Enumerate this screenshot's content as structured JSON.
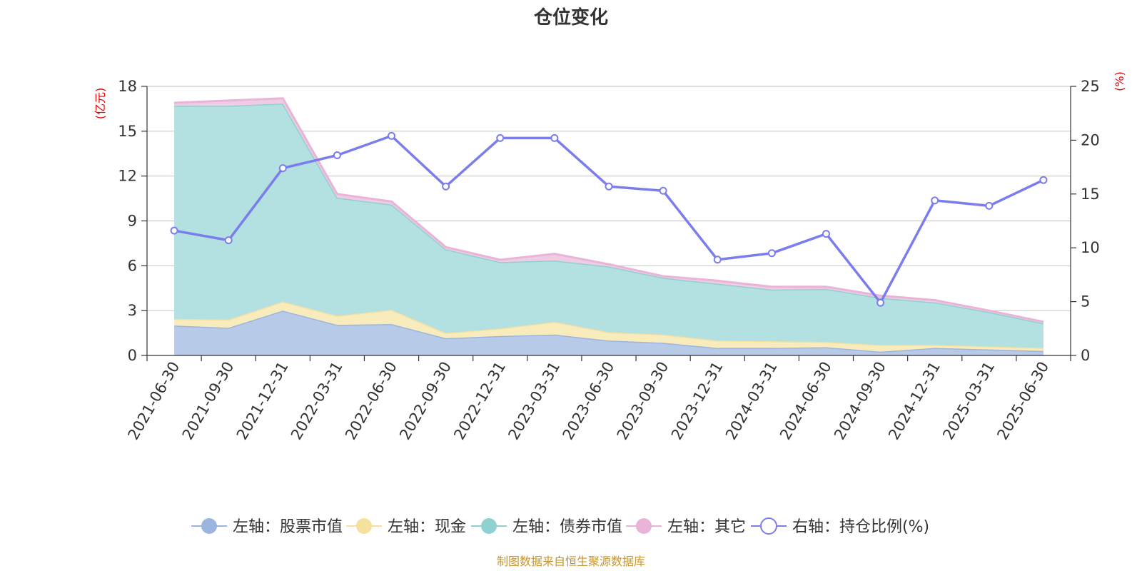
{
  "chart_data": {
    "type": "area",
    "title": "仓位变化",
    "left_unit": "(亿元)",
    "right_unit": "(%)",
    "source": "制图数据来自恒生聚源数据库",
    "categories": [
      "2021-06-30",
      "2021-09-30",
      "2021-12-31",
      "2022-03-31",
      "2022-06-30",
      "2022-09-30",
      "2022-12-31",
      "2023-03-31",
      "2023-06-30",
      "2023-09-30",
      "2023-12-31",
      "2024-03-31",
      "2024-06-30",
      "2024-09-30",
      "2024-12-31",
      "2025-03-31",
      "2025-06-30"
    ],
    "left_axis": {
      "min": 0,
      "max": 18,
      "ticks": [
        "0",
        "3",
        "6",
        "9",
        "12",
        "15",
        "18"
      ]
    },
    "right_axis": {
      "min": 0,
      "max": 25,
      "ticks": [
        "0",
        "5",
        "10",
        "15",
        "20",
        "25"
      ]
    },
    "stacked_series": [
      {
        "name": "左轴：股票市值",
        "color": "#9bb5e0",
        "fill": "#b7cbe9",
        "values": [
          2.0,
          1.85,
          3.0,
          2.05,
          2.1,
          1.15,
          1.3,
          1.4,
          1.0,
          0.85,
          0.5,
          0.5,
          0.55,
          0.25,
          0.5,
          0.4,
          0.3
        ]
      },
      {
        "name": "左轴：现金",
        "color": "#f6e0a0",
        "fill": "#f8ecbc",
        "values": [
          0.45,
          0.55,
          0.6,
          0.6,
          0.95,
          0.35,
          0.5,
          0.85,
          0.55,
          0.55,
          0.5,
          0.45,
          0.35,
          0.45,
          0.2,
          0.2,
          0.2
        ]
      },
      {
        "name": "左轴：债券市值",
        "color": "#8fd1d1",
        "fill": "#b3e0e0",
        "values": [
          14.25,
          14.3,
          13.25,
          7.9,
          7.05,
          5.6,
          4.45,
          4.1,
          4.4,
          3.8,
          3.8,
          3.45,
          3.55,
          3.15,
          2.85,
          2.3,
          1.65
        ]
      },
      {
        "name": "左轴：其它",
        "color": "#e8b4d8",
        "fill": "#f0cce4",
        "values": [
          0.2,
          0.35,
          0.35,
          0.25,
          0.2,
          0.15,
          0.15,
          0.45,
          0.15,
          0.1,
          0.2,
          0.2,
          0.15,
          0.15,
          0.15,
          0.1,
          0.1
        ]
      }
    ],
    "line_series": {
      "name": "右轴：持仓比例(%)",
      "color": "#7b7ded",
      "values": [
        11.6,
        10.7,
        17.4,
        18.6,
        20.4,
        15.7,
        20.2,
        20.2,
        15.7,
        15.3,
        8.9,
        9.5,
        11.3,
        4.9,
        14.4,
        13.9,
        16.3
      ]
    },
    "grid": true,
    "legend_position": "bottom"
  }
}
